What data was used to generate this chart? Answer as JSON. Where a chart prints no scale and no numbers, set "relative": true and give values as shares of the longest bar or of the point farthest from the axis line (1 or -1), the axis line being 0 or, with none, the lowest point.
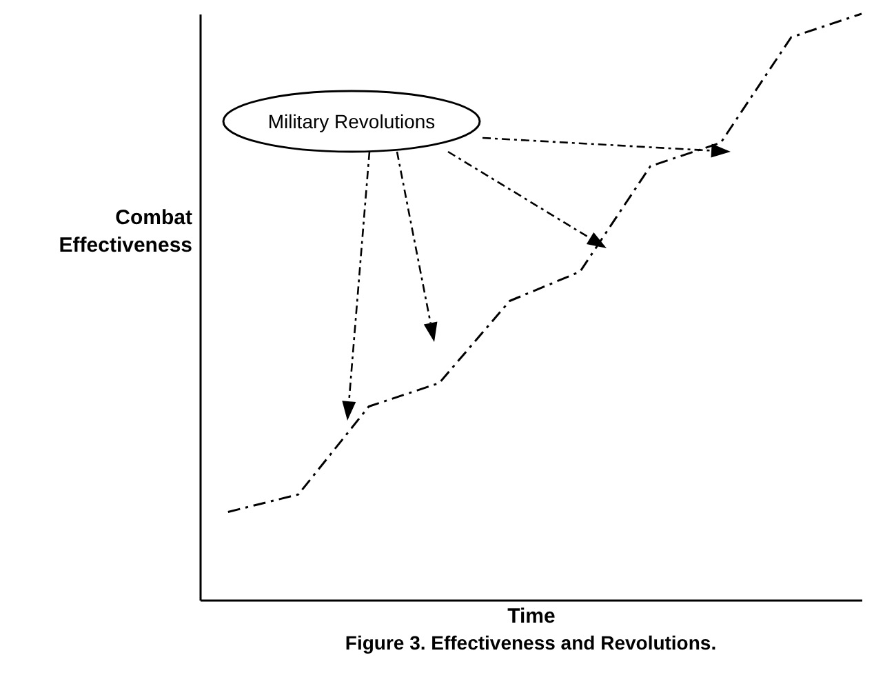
{
  "chart_data": {
    "type": "line",
    "title": "Figure 3.  Effectiveness and Revolutions.",
    "xlabel": "Time",
    "ylabel": "Combat Effectiveness",
    "relative": true,
    "line_style": "dashed",
    "categories": [
      null,
      null,
      null,
      null,
      null,
      null,
      null,
      null,
      null,
      null
    ],
    "series": [
      {
        "color": "#000000",
        "values": [
          0.15,
          0.18,
          0.33,
          0.37,
          0.51,
          0.56,
          0.74,
          0.78,
          0.96,
          1
        ]
      }
    ],
    "annotations": [
      "Military Revolutions"
    ]
  }
}
